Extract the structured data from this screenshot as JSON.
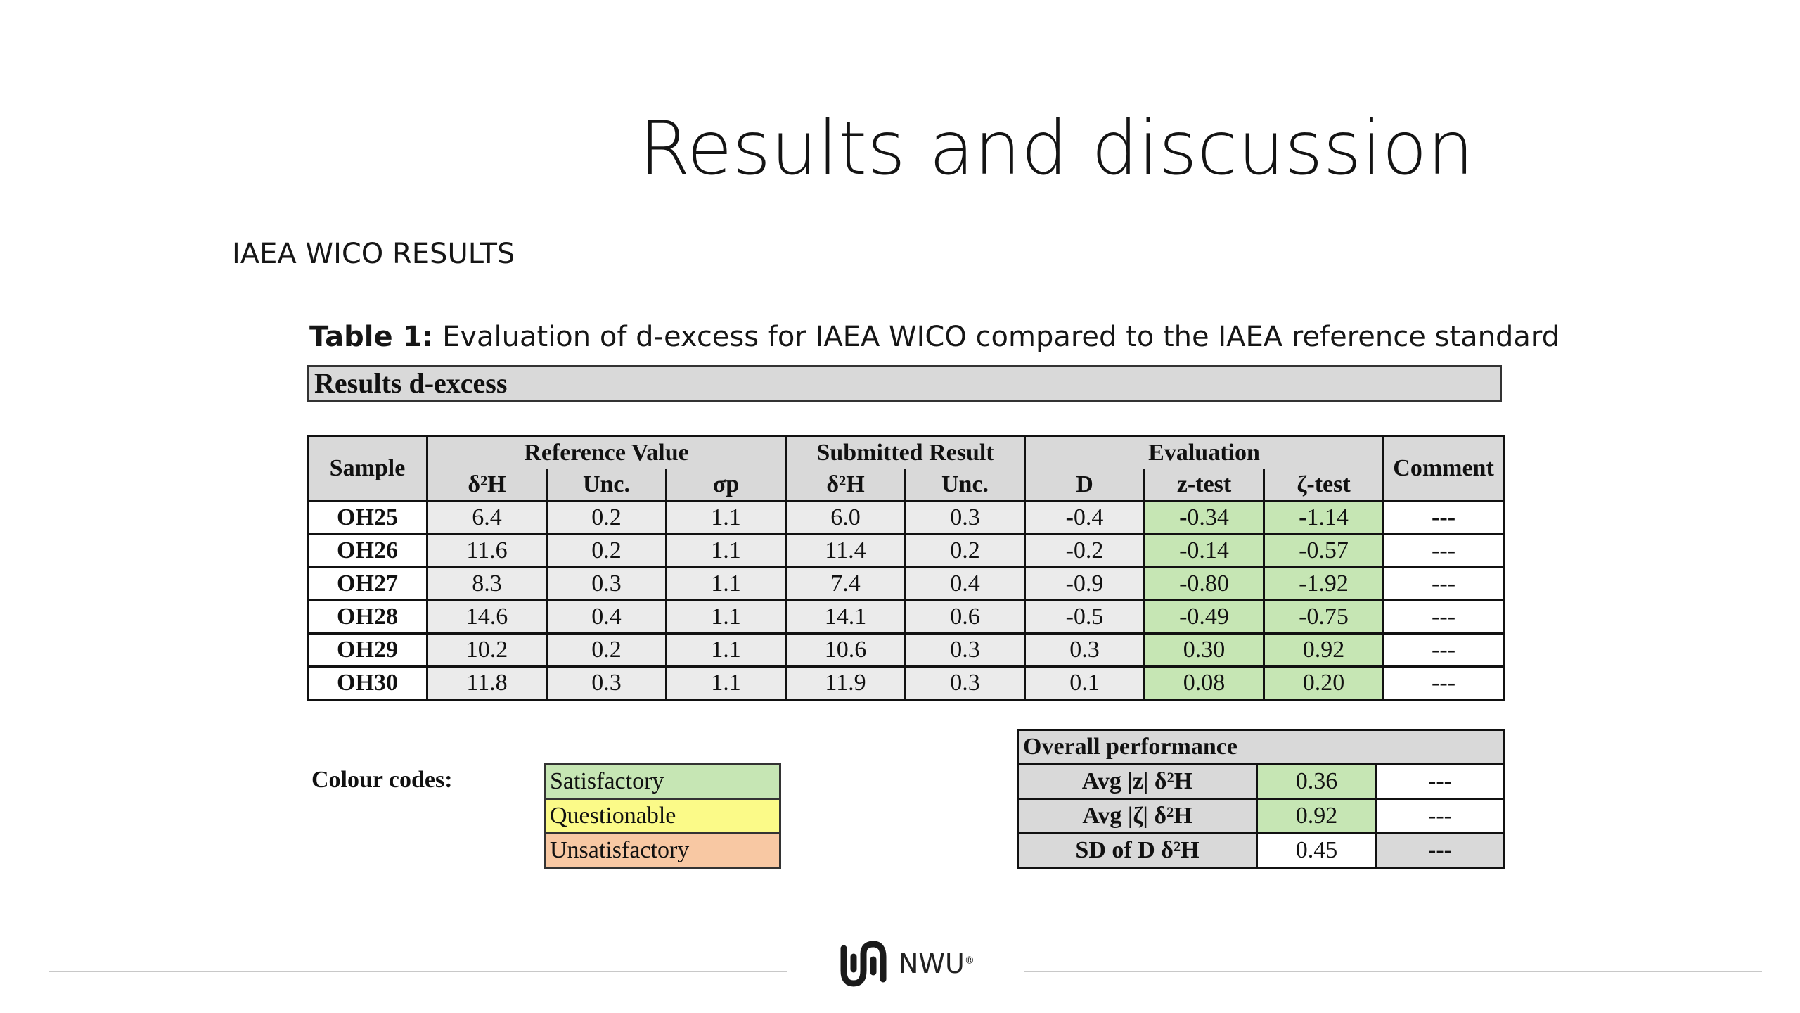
{
  "slide": {
    "title": "Results and discussion",
    "subtitle": "IAEA WICO RESULTS",
    "caption_bold": "Table 1:",
    "caption_text": " Evaluation of d-excess for IAEA WICO compared to the IAEA reference standard"
  },
  "results": {
    "banner": "Results d-excess",
    "headers": {
      "sample": "Sample",
      "reference_value": "Reference Value",
      "submitted_result": "Submitted Result",
      "evaluation": "Evaluation",
      "comment": "Comment",
      "ref_d2h": "δ²H",
      "ref_unc": "Unc.",
      "ref_sigma": "σp",
      "sub_d2h": "δ²H",
      "sub_unc": "Unc.",
      "eval_d": "D",
      "eval_z": "z-test",
      "eval_zeta": "ζ-test"
    },
    "rows": [
      {
        "sample": "OH25",
        "ref_d2h": "6.4",
        "ref_unc": "0.2",
        "sigma": "1.1",
        "sub_d2h": "6.0",
        "sub_unc": "0.3",
        "d": "-0.4",
        "z": "-0.34",
        "zeta": "-1.14",
        "comment": "---"
      },
      {
        "sample": "OH26",
        "ref_d2h": "11.6",
        "ref_unc": "0.2",
        "sigma": "1.1",
        "sub_d2h": "11.4",
        "sub_unc": "0.2",
        "d": "-0.2",
        "z": "-0.14",
        "zeta": "-0.57",
        "comment": "---"
      },
      {
        "sample": "OH27",
        "ref_d2h": "8.3",
        "ref_unc": "0.3",
        "sigma": "1.1",
        "sub_d2h": "7.4",
        "sub_unc": "0.4",
        "d": "-0.9",
        "z": "-0.80",
        "zeta": "-1.92",
        "comment": "---"
      },
      {
        "sample": "OH28",
        "ref_d2h": "14.6",
        "ref_unc": "0.4",
        "sigma": "1.1",
        "sub_d2h": "14.1",
        "sub_unc": "0.6",
        "d": "-0.5",
        "z": "-0.49",
        "zeta": "-0.75",
        "comment": "---"
      },
      {
        "sample": "OH29",
        "ref_d2h": "10.2",
        "ref_unc": "0.2",
        "sigma": "1.1",
        "sub_d2h": "10.6",
        "sub_unc": "0.3",
        "d": "0.3",
        "z": "0.30",
        "zeta": "0.92",
        "comment": "---"
      },
      {
        "sample": "OH30",
        "ref_d2h": "11.8",
        "ref_unc": "0.3",
        "sigma": "1.1",
        "sub_d2h": "11.9",
        "sub_unc": "0.3",
        "d": "0.1",
        "z": "0.08",
        "zeta": "0.20",
        "comment": "---"
      }
    ]
  },
  "colour_codes": {
    "label": "Colour codes:",
    "satisfactory": "Satisfactory",
    "questionable": "Questionable",
    "unsatisfactory": "Unsatisfactory",
    "colors": {
      "satisfactory": "#c6e6b4",
      "questionable": "#fbfa88",
      "unsatisfactory": "#f8c8a3"
    }
  },
  "overall": {
    "title": "Overall performance",
    "rows": [
      {
        "label": "Avg |z| δ²H",
        "value": "0.36",
        "comment": "---"
      },
      {
        "label": "Avg |ζ| δ²H",
        "value": "0.92",
        "comment": "---"
      },
      {
        "label": "SD of D δ²H",
        "value": "0.45",
        "comment": "---"
      }
    ]
  },
  "footer": {
    "logo_text": "NWU",
    "logo_mark": "®"
  }
}
